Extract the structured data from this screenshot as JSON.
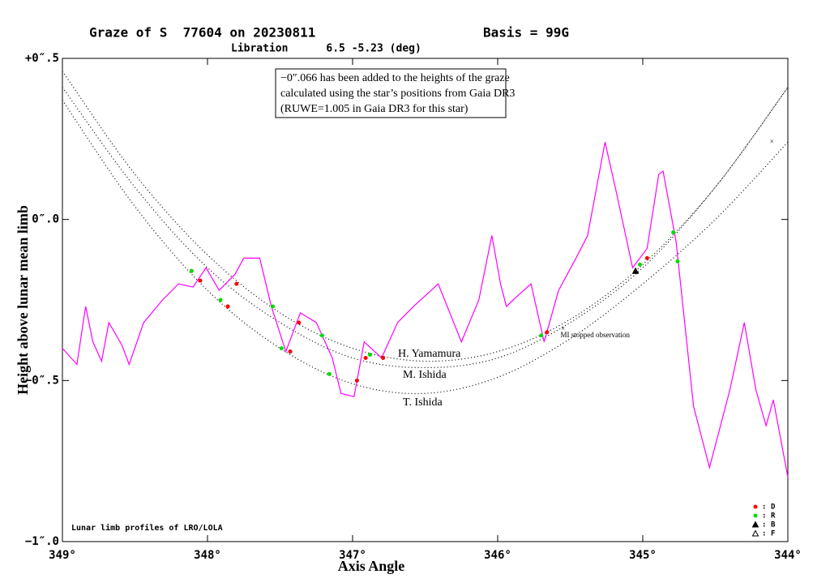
{
  "chart_data": {
    "type": "line",
    "title": "Graze of S  77604 on 20230811",
    "basis": "Basis = 99G",
    "subtitle": "Libration      6.5 -5.23 (deg)",
    "x_label": "Axis Angle",
    "y_label": "Height above lunar mean limb",
    "annotation_lines": [
      "−0″.066 has been added to the heights of the graze",
      "calculated using the star’s positions from Gaia DR3",
      "(RUWE=1.005 in Gaia DR3 for this star)"
    ],
    "credit": "Lunar limb profiles of LRO/LOLA",
    "note": "MI stopped observation",
    "legend_separator": ":",
    "xlim": [
      349,
      344
    ],
    "ylim": [
      -1,
      0.5
    ],
    "xticks": [
      {
        "value": 349,
        "label": "349°"
      },
      {
        "value": 348,
        "label": "348°"
      },
      {
        "value": 347,
        "label": "347°"
      },
      {
        "value": 346,
        "label": "346°"
      },
      {
        "value": 345,
        "label": "345°"
      },
      {
        "value": 344,
        "label": "344°"
      }
    ],
    "yticks": [
      {
        "value": 0.5,
        "label": "+0″.5"
      },
      {
        "value": 0,
        "label": "0″.0"
      },
      {
        "value": -0.5,
        "label": "−0″.5"
      },
      {
        "value": -1,
        "label": "−1″.0"
      }
    ],
    "profile": {
      "color": "#ff00ff",
      "x": [
        349.0,
        348.9,
        348.84,
        348.79,
        348.73,
        348.68,
        348.59,
        348.54,
        348.44,
        348.31,
        348.2,
        348.1,
        348.01,
        347.92,
        347.81,
        347.75,
        347.64,
        347.56,
        347.46,
        347.36,
        347.25,
        347.14,
        347.08,
        346.99,
        346.92,
        346.8,
        346.69,
        346.58,
        346.41,
        346.25,
        346.13,
        346.04,
        345.98,
        345.94,
        345.87,
        345.77,
        345.68,
        345.58,
        345.46,
        345.38,
        345.26,
        345.18,
        345.07,
        344.97,
        344.89,
        344.86,
        344.77,
        344.65,
        344.54,
        344.4,
        344.3,
        344.22,
        344.15,
        344.1,
        344.0
      ],
      "y": [
        -0.4,
        -0.45,
        -0.27,
        -0.38,
        -0.44,
        -0.32,
        -0.39,
        -0.45,
        -0.32,
        -0.25,
        -0.2,
        -0.21,
        -0.15,
        -0.22,
        -0.17,
        -0.12,
        -0.12,
        -0.27,
        -0.41,
        -0.29,
        -0.32,
        -0.43,
        -0.54,
        -0.55,
        -0.38,
        -0.43,
        -0.32,
        -0.27,
        -0.2,
        -0.38,
        -0.25,
        -0.05,
        -0.2,
        -0.27,
        -0.24,
        -0.2,
        -0.38,
        -0.22,
        -0.12,
        -0.05,
        0.24,
        0.08,
        -0.15,
        -0.09,
        0.14,
        0.15,
        -0.07,
        -0.58,
        -0.77,
        -0.53,
        -0.32,
        -0.53,
        -0.64,
        -0.56,
        -0.8
      ]
    },
    "tracks": [
      {
        "name": "H. Yamamura",
        "x": [
          349,
          348.5,
          348,
          347.5,
          347,
          346.5,
          346,
          345.5,
          345,
          344.5,
          344
        ],
        "y": [
          0.46,
          0.14,
          -0.11,
          -0.29,
          -0.4,
          -0.44,
          -0.41,
          -0.31,
          -0.14,
          0.1,
          0.41
        ]
      },
      {
        "name": "M. Ishida",
        "x": [
          349,
          348.5,
          348,
          347.5,
          347,
          346.5,
          346,
          345.5,
          345,
          344.5,
          344
        ],
        "y": [
          0.41,
          0.1,
          -0.15,
          -0.32,
          -0.43,
          -0.46,
          -0.43,
          -0.32,
          -0.15,
          0.1,
          0.41
        ]
      },
      {
        "name": "T. Ishida",
        "x": [
          349,
          348.5,
          348,
          347.5,
          347,
          346.5,
          346,
          345.5,
          345,
          344.5,
          344
        ],
        "y": [
          0.37,
          0.04,
          -0.22,
          -0.4,
          -0.51,
          -0.54,
          -0.49,
          -0.37,
          -0.2,
          0.0,
          0.24
        ]
      }
    ],
    "series": [
      {
        "name": "D",
        "marker": "circle",
        "color": "#ff0000",
        "x": [
          348.05,
          348.11,
          347.86,
          347.8,
          347.43,
          347.37,
          346.97,
          346.91,
          346.79,
          345.66,
          344.97
        ],
        "y": [
          -0.19,
          -0.16,
          -0.27,
          -0.2,
          -0.41,
          -0.32,
          -0.5,
          -0.43,
          -0.43,
          -0.35,
          -0.12
        ]
      },
      {
        "name": "R",
        "marker": "circle",
        "color": "#00dd00",
        "x": [
          348.11,
          347.91,
          347.55,
          347.49,
          347.21,
          347.16,
          346.88,
          345.7,
          345.02,
          344.79,
          344.76
        ],
        "y": [
          -0.16,
          -0.25,
          -0.27,
          -0.4,
          -0.36,
          -0.48,
          -0.42,
          -0.36,
          -0.14,
          -0.04,
          -0.13
        ]
      },
      {
        "name": "B",
        "marker": "triangle",
        "color": "#000000",
        "x": [
          345.05
        ],
        "y": [
          -0.16
        ]
      },
      {
        "name": "F",
        "marker": "open-triangle",
        "color": "#000000",
        "x": [],
        "y": []
      }
    ],
    "crosses": {
      "x": [
        345.55,
        344.11
      ],
      "y": [
        -0.34,
        0.24
      ]
    }
  }
}
